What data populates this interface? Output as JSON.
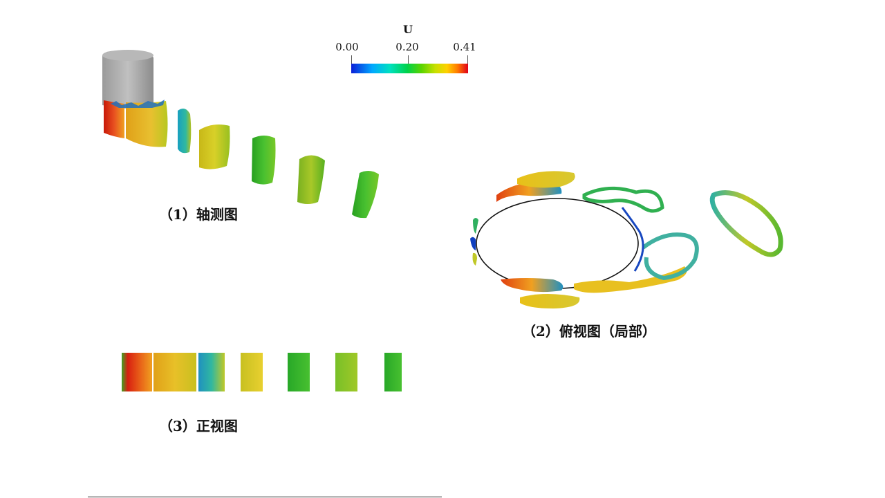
{
  "colorbar": {
    "title": "U",
    "ticks": [
      "0.00",
      "0.20",
      "0.41"
    ],
    "range": [
      0.0,
      0.41
    ],
    "colors": [
      "#0b1fd8",
      "#00a8ff",
      "#00e0c0",
      "#00d24a",
      "#5ad400",
      "#c8e000",
      "#ffd000",
      "#ff7a00",
      "#e0001a"
    ]
  },
  "panels": [
    {
      "id": "axonometric",
      "caption": "（1）轴测图"
    },
    {
      "id": "top",
      "caption": "（2）俯视图（局部）"
    },
    {
      "id": "front",
      "caption": "（3）正视图"
    }
  ],
  "colors": {
    "background": "#ffffff",
    "structure": "#a9a9a9",
    "red": "#d83010",
    "orange": "#f0a020",
    "yellow": "#d8d020",
    "yellow_green": "#a8d020",
    "green": "#3cc030",
    "teal": "#30a8a0",
    "blue": "#1040c0"
  }
}
